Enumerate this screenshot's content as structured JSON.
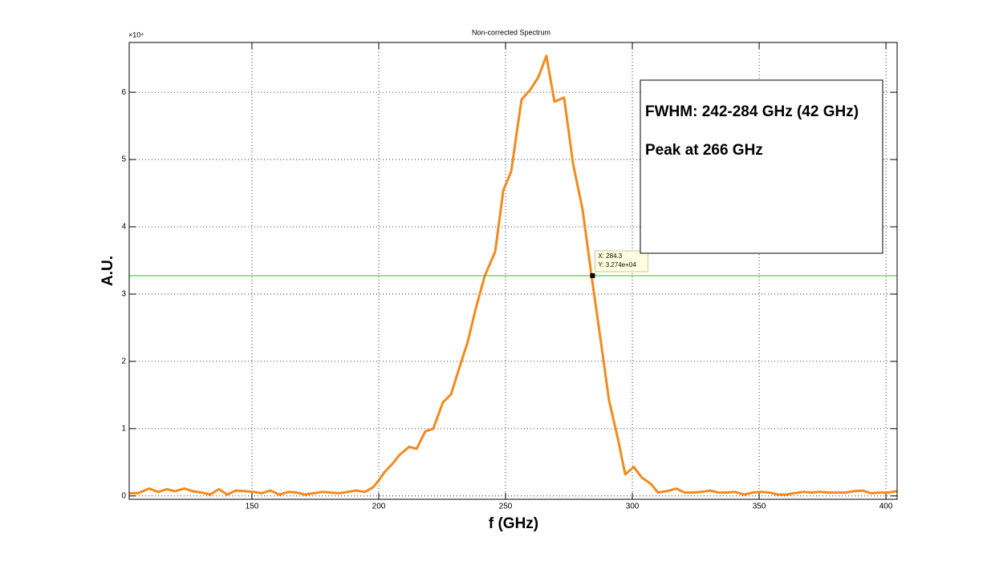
{
  "chart_data": {
    "type": "line",
    "title": "Non-corrected Spectrum",
    "x_label": "f (GHz)",
    "y_label": "A.U.",
    "y_exponent": "×10⁴",
    "color": "#f28a1e",
    "x": [
      101.6,
      105.1,
      109.5,
      113.0,
      116.5,
      119.6,
      123.4,
      126.6,
      130.1,
      133.5,
      137.0,
      140.2,
      143.7,
      147.2,
      150.6,
      153.8,
      157.3,
      160.8,
      164.6,
      167.7,
      170.9,
      174.4,
      177.8,
      181.0,
      184.5,
      187.7,
      191.1,
      194.6,
      197.8,
      200.0,
      202.2,
      205.7,
      208.2,
      212.0,
      214.9,
      218.4,
      221.5,
      225.3,
      228.5,
      232.0,
      235.1,
      238.3,
      241.8,
      245.9,
      249.1,
      252.2,
      256.3,
      259.8,
      263.0,
      266.1,
      269.3,
      273.1,
      276.6,
      280.4,
      283.9,
      287.3,
      290.8,
      294.3,
      297.2,
      300.6,
      303.8,
      307.3,
      310.1,
      313.6,
      317.4,
      320.6,
      323.7,
      327.2,
      330.7,
      333.9,
      337.3,
      340.5,
      344.0,
      347.5,
      350.6,
      354.1,
      357.3,
      360.8,
      363.9,
      367.4,
      370.6,
      374.1,
      377.2,
      380.7,
      384.2,
      387.3,
      390.8,
      394.0,
      397.5,
      400.9,
      404.4
    ],
    "values": [
      400,
      400,
      1100,
      600,
      1000,
      700,
      1100,
      700,
      500,
      200,
      1000,
      200,
      800,
      700,
      600,
      400,
      800,
      200,
      600,
      500,
      200,
      400,
      600,
      500,
      400,
      600,
      800,
      600,
      1300,
      2300,
      3500,
      4900,
      6100,
      7300,
      7000,
      9600,
      10000,
      13900,
      15100,
      19300,
      22900,
      27900,
      32700,
      36300,
      45400,
      48200,
      58900,
      60400,
      62300,
      65400,
      58600,
      59200,
      49400,
      42500,
      32700,
      23700,
      14200,
      8500,
      3200,
      4300,
      2700,
      1800,
      500,
      700,
      1100,
      500,
      500,
      600,
      800,
      500,
      500,
      600,
      200,
      500,
      600,
      500,
      200,
      200,
      400,
      600,
      500,
      600,
      500,
      500,
      500,
      700,
      800,
      400,
      500,
      500,
      700
    ],
    "xlim": [
      101.6,
      404.4
    ],
    "ylim": [
      -500,
      67400
    ],
    "xticks": [
      150,
      200,
      250,
      300,
      350,
      400
    ],
    "yticks": [
      0,
      {
        "value": 10000,
        "label": "1"
      },
      {
        "value": 20000,
        "label": "2"
      },
      {
        "value": 30000,
        "label": "3"
      },
      {
        "value": 40000,
        "label": "4"
      },
      {
        "value": 50000,
        "label": "5"
      },
      {
        "value": 60000,
        "label": "6"
      }
    ],
    "grid": true,
    "hline": {
      "value": 32740,
      "color": "#22cc22"
    },
    "datatip": {
      "x": 284.3,
      "y": 32740,
      "labels": [
        "X: 284.3",
        "Y: 3.274e+04"
      ]
    },
    "annotation": [
      "FWHM: 242-284 GHz (42 GHz)",
      "Peak at 266 GHz"
    ]
  }
}
